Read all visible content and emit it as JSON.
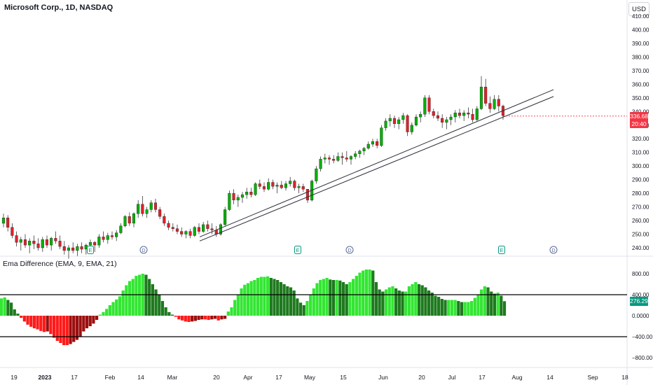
{
  "header": {
    "title": "Microsoft Corp., 1D, NASDAQ",
    "currency": "USD"
  },
  "price_tag": {
    "price": "336.68",
    "countdown": "20:40"
  },
  "indicator": {
    "title": "Ema Difference (EMA, 9, EMA, 21)",
    "value_tag": "276.29"
  },
  "colors": {
    "up": "#00b000",
    "down": "#e0202a",
    "hist_bright_green": "#33e633",
    "hist_dark_green": "#1e7a1e",
    "hist_red": "#ff1a1a",
    "hist_dark_red": "#9c0f0f"
  },
  "chart_data": [
    {
      "type": "candlestick",
      "title": "Microsoft Corp., 1D, NASDAQ",
      "ylim": [
        235,
        415
      ],
      "y_ticks": [
        "410.00",
        "400.00",
        "390.00",
        "380.00",
        "370.00",
        "360.00",
        "350.00",
        "340.00",
        "330.00",
        "320.00",
        "310.00",
        "300.00",
        "290.00",
        "280.00",
        "270.00",
        "260.00",
        "250.00",
        "240.00"
      ],
      "x_ticks": [
        "19",
        "2023",
        "17",
        "Feb",
        "14",
        "Mar",
        "20",
        "Apr",
        "17",
        "May",
        "15",
        "Jun",
        "20",
        "Jul",
        "17",
        "Aug",
        "14",
        "Sep",
        "18"
      ],
      "markers": [
        {
          "label": "E",
          "date": "Jan 24"
        },
        {
          "label": "D",
          "date": "Feb 15"
        },
        {
          "label": "E",
          "date": "Apr 25"
        },
        {
          "label": "D",
          "date": "May 17"
        },
        {
          "label": "E",
          "date": "Jul 25"
        },
        {
          "label": "D",
          "date": "Aug 16"
        }
      ],
      "trendlines": [
        {
          "from": {
            "date": "Mar 13",
            "price": 248
          },
          "to": {
            "date": "Aug 14",
            "price": 356
          }
        },
        {
          "from": {
            "date": "Mar 13",
            "price": 245
          },
          "to": {
            "date": "Aug 14",
            "price": 351
          }
        }
      ],
      "ohlc": [
        [
          258,
          265,
          255,
          262
        ],
        [
          262,
          264,
          252,
          255
        ],
        [
          255,
          258,
          247,
          249
        ],
        [
          249,
          252,
          241,
          244
        ],
        [
          244,
          248,
          238,
          246
        ],
        [
          246,
          250,
          240,
          242
        ],
        [
          242,
          247,
          236,
          245
        ],
        [
          245,
          249,
          239,
          243
        ],
        [
          243,
          247,
          238,
          240
        ],
        [
          240,
          248,
          237,
          246
        ],
        [
          246,
          249,
          240,
          242
        ],
        [
          242,
          248,
          238,
          247
        ],
        [
          247,
          252,
          243,
          245
        ],
        [
          245,
          249,
          239,
          241
        ],
        [
          241,
          245,
          235,
          238
        ],
        [
          238,
          242,
          232,
          240
        ],
        [
          240,
          244,
          236,
          238
        ],
        [
          238,
          243,
          234,
          241
        ],
        [
          241,
          244,
          236,
          239
        ],
        [
          239,
          243,
          235,
          242
        ],
        [
          242,
          246,
          238,
          244
        ],
        [
          244,
          245,
          237,
          242
        ],
        [
          242,
          250,
          240,
          248
        ],
        [
          248,
          252,
          244,
          246
        ],
        [
          246,
          251,
          243,
          249
        ],
        [
          249,
          252,
          246,
          248
        ],
        [
          248,
          253,
          245,
          251
        ],
        [
          251,
          258,
          250,
          256
        ],
        [
          256,
          264,
          255,
          263
        ],
        [
          263,
          266,
          256,
          258
        ],
        [
          258,
          266,
          255,
          265
        ],
        [
          265,
          275,
          262,
          272
        ],
        [
          272,
          278,
          263,
          265
        ],
        [
          265,
          270,
          262,
          268
        ],
        [
          268,
          275,
          266,
          273
        ],
        [
          273,
          276,
          266,
          268
        ],
        [
          268,
          270,
          261,
          263
        ],
        [
          263,
          265,
          256,
          258
        ],
        [
          258,
          260,
          253,
          255
        ],
        [
          255,
          258,
          252,
          254
        ],
        [
          254,
          257,
          250,
          252
        ],
        [
          252,
          255,
          248,
          250
        ],
        [
          250,
          253,
          247,
          252
        ],
        [
          252,
          254,
          247,
          249
        ],
        [
          249,
          256,
          248,
          255
        ],
        [
          255,
          258,
          250,
          252
        ],
        [
          252,
          259,
          251,
          257
        ],
        [
          257,
          260,
          252,
          254
        ],
        [
          254,
          258,
          250,
          253
        ],
        [
          253,
          256,
          248,
          250
        ],
        [
          250,
          258,
          249,
          257
        ],
        [
          257,
          270,
          256,
          268
        ],
        [
          268,
          282,
          267,
          280
        ],
        [
          280,
          283,
          272,
          275
        ],
        [
          275,
          279,
          270,
          277
        ],
        [
          277,
          281,
          273,
          279
        ],
        [
          279,
          284,
          276,
          281
        ],
        [
          281,
          284,
          277,
          279
        ],
        [
          279,
          288,
          278,
          287
        ],
        [
          287,
          290,
          283,
          285
        ],
        [
          285,
          288,
          281,
          283
        ],
        [
          283,
          291,
          282,
          288
        ],
        [
          288,
          290,
          283,
          285
        ],
        [
          285,
          288,
          280,
          286
        ],
        [
          286,
          289,
          283,
          284
        ],
        [
          284,
          289,
          282,
          287
        ],
        [
          287,
          292,
          285,
          289
        ],
        [
          289,
          290,
          282,
          284
        ],
        [
          284,
          287,
          280,
          285
        ],
        [
          285,
          287,
          281,
          283
        ],
        [
          283,
          282,
          273,
          275
        ],
        [
          275,
          290,
          274,
          289
        ],
        [
          289,
          300,
          287,
          298
        ],
        [
          298,
          307,
          296,
          305
        ],
        [
          305,
          309,
          302,
          306
        ],
        [
          306,
          308,
          301,
          305
        ],
        [
          305,
          308,
          302,
          304
        ],
        [
          304,
          310,
          303,
          307
        ],
        [
          307,
          310,
          301,
          306
        ],
        [
          306,
          311,
          303,
          305
        ],
        [
          305,
          308,
          301,
          307
        ],
        [
          307,
          311,
          305,
          309
        ],
        [
          309,
          312,
          306,
          311
        ],
        [
          311,
          314,
          308,
          313
        ],
        [
          313,
          318,
          312,
          316
        ],
        [
          316,
          320,
          314,
          318
        ],
        [
          318,
          320,
          313,
          315
        ],
        [
          315,
          330,
          314,
          328
        ],
        [
          328,
          335,
          326,
          333
        ],
        [
          333,
          338,
          329,
          335
        ],
        [
          335,
          337,
          328,
          331
        ],
        [
          331,
          336,
          327,
          334
        ],
        [
          334,
          339,
          331,
          337
        ],
        [
          337,
          338,
          322,
          325
        ],
        [
          325,
          332,
          323,
          330
        ],
        [
          330,
          338,
          329,
          336
        ],
        [
          336,
          340,
          332,
          338
        ],
        [
          338,
          352,
          336,
          350
        ],
        [
          350,
          352,
          338,
          340
        ],
        [
          340,
          342,
          335,
          337
        ],
        [
          337,
          340,
          333,
          335
        ],
        [
          335,
          338,
          328,
          332
        ],
        [
          332,
          336,
          327,
          334
        ],
        [
          334,
          338,
          330,
          336
        ],
        [
          336,
          341,
          332,
          339
        ],
        [
          339,
          342,
          335,
          337
        ],
        [
          337,
          341,
          333,
          339
        ],
        [
          339,
          343,
          335,
          338
        ],
        [
          338,
          342,
          332,
          334
        ],
        [
          334,
          344,
          333,
          342
        ],
        [
          342,
          366,
          341,
          358
        ],
        [
          358,
          364,
          344,
          346
        ],
        [
          346,
          351,
          339,
          342
        ],
        [
          342,
          352,
          341,
          349
        ],
        [
          349,
          352,
          340,
          344
        ],
        [
          344,
          345,
          334,
          337
        ]
      ]
    },
    {
      "type": "bar",
      "title": "Ema Difference (EMA, 9, EMA, 21)",
      "ylim": [
        -900,
        1000
      ],
      "y_ticks": [
        "800.00",
        "400.00",
        "0.0000",
        "−400.00",
        "−800.00"
      ],
      "hlines": [
        400,
        -400
      ],
      "values": [
        330,
        350,
        300,
        250,
        120,
        40,
        -40,
        -110,
        -170,
        -210,
        -240,
        -260,
        -290,
        -310,
        -300,
        -350,
        -420,
        -480,
        -520,
        -560,
        -560,
        -540,
        -500,
        -460,
        -400,
        -300,
        -240,
        -200,
        -150,
        -80,
        20,
        70,
        130,
        200,
        260,
        310,
        370,
        480,
        580,
        660,
        700,
        760,
        780,
        800,
        780,
        700,
        600,
        500,
        400,
        280,
        160,
        70,
        20,
        -20,
        -70,
        -90,
        -110,
        -120,
        -110,
        -100,
        -80,
        -70,
        -70,
        -80,
        -70,
        -60,
        -90,
        -70,
        -60,
        80,
        160,
        300,
        400,
        520,
        590,
        620,
        660,
        680,
        720,
        740,
        740,
        750,
        720,
        700,
        680,
        640,
        600,
        560,
        540,
        480,
        330,
        250,
        200,
        280,
        400,
        520,
        620,
        680,
        700,
        720,
        690,
        680,
        680,
        670,
        640,
        600,
        640,
        700,
        760,
        820,
        860,
        880,
        880,
        860,
        640,
        500,
        460,
        500,
        540,
        560,
        520,
        480,
        460,
        460,
        560,
        600,
        640,
        600,
        580,
        540,
        480,
        440,
        380,
        360,
        320,
        300,
        300,
        300,
        300,
        280,
        260,
        260,
        260,
        280,
        340,
        400,
        500,
        560,
        540,
        460,
        420,
        440,
        380,
        276
      ]
    }
  ]
}
